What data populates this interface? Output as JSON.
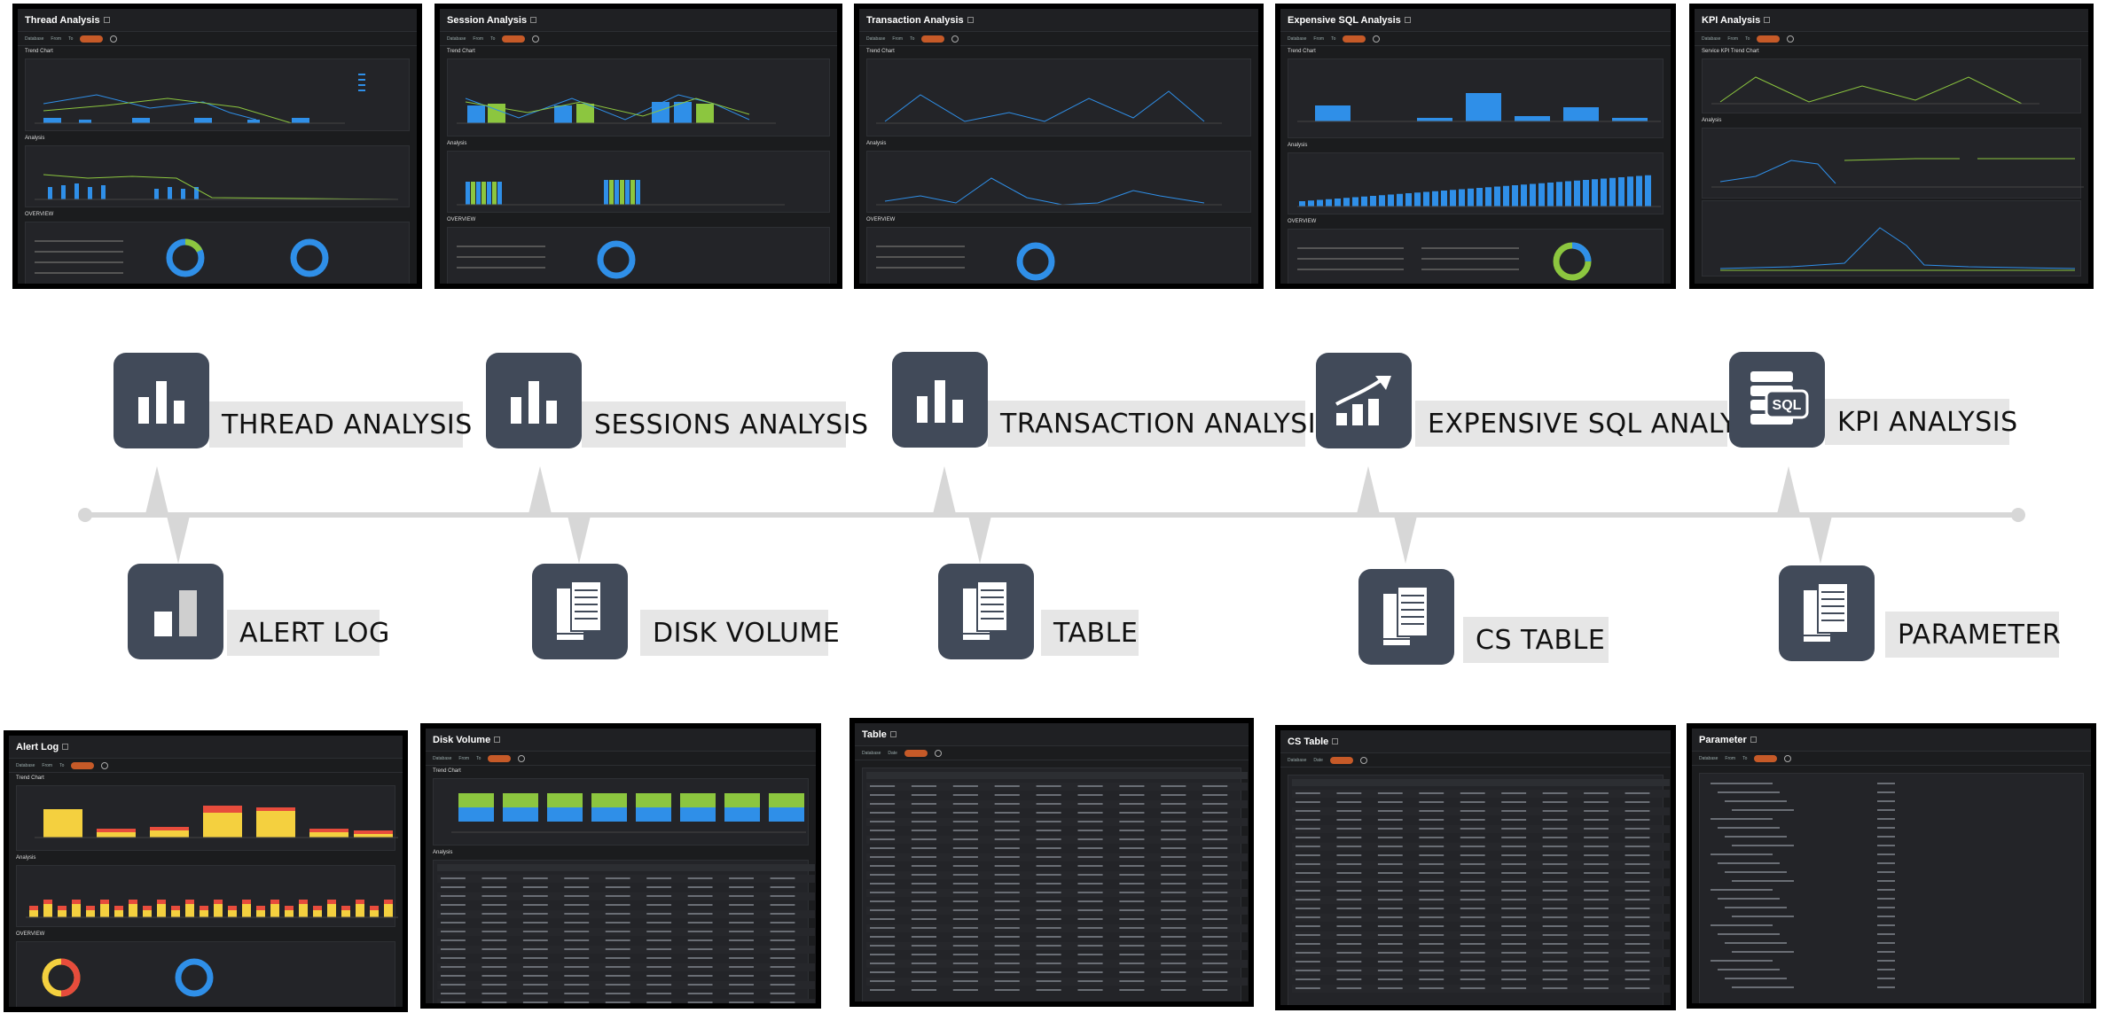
{
  "top_features": [
    {
      "label": "THREAD ANALYSIS",
      "icon": "bar-chart-icon"
    },
    {
      "label": "SESSIONS ANALYSIS",
      "icon": "bar-chart-icon"
    },
    {
      "label": "TRANSACTION ANALYSIS",
      "icon": "bar-chart-icon"
    },
    {
      "label": "EXPENSIVE SQL ANALYSIS",
      "icon": "trend-up-chart-icon"
    },
    {
      "label": "KPI ANALYSIS",
      "icon": "sql-database-icon"
    }
  ],
  "bottom_features": [
    {
      "label": "ALERT LOG",
      "icon": "two-bar-chart-icon"
    },
    {
      "label": "DISK VOLUME",
      "icon": "documents-icon"
    },
    {
      "label": "TABLE",
      "icon": "documents-icon"
    },
    {
      "label": "CS TABLE",
      "icon": "documents-icon"
    },
    {
      "label": "PARAMETER",
      "icon": "documents-icon"
    }
  ],
  "top_screens": [
    {
      "title": "Thread Analysis",
      "section1": "Trend Chart",
      "section2": "Analysis",
      "section3": "OVERVIEW"
    },
    {
      "title": "Session Analysis",
      "section1": "Trend Chart",
      "section2": "Analysis",
      "section3": "OVERVIEW"
    },
    {
      "title": "Transaction Analysis",
      "section1": "Trend Chart",
      "section2": "Analysis",
      "section3": "OVERVIEW"
    },
    {
      "title": "Expensive SQL Analysis",
      "section1": "Trend Chart",
      "section2": "Analysis",
      "section3": "OVERVIEW"
    },
    {
      "title": "KPI Analysis",
      "section1": "Service KPI Trend Chart",
      "section2": "Analysis",
      "section3": ""
    }
  ],
  "bottom_screens": [
    {
      "title": "Alert Log",
      "section1": "Trend Chart",
      "section2": "Analysis",
      "section3": "OVERVIEW"
    },
    {
      "title": "Disk Volume",
      "section1": "Trend Chart",
      "section2": "Analysis",
      "section3": ""
    },
    {
      "title": "Table",
      "section1": "",
      "section2": "",
      "section3": ""
    },
    {
      "title": "CS Table",
      "section1": "",
      "section2": "",
      "section3": ""
    },
    {
      "title": "Parameter",
      "section1": "",
      "section2": "",
      "section3": ""
    }
  ],
  "colors": {
    "icon_bg": "#414a59",
    "label_bg": "#e6e6e6",
    "timeline": "#d7d7d7",
    "screen_bg": "#1b1c1e",
    "accent_orange": "#c65a28",
    "chart_blue": "#2f8fe8",
    "chart_green": "#8cc63f",
    "chart_yellow": "#f4d03f",
    "chart_red": "#e74c3c"
  }
}
